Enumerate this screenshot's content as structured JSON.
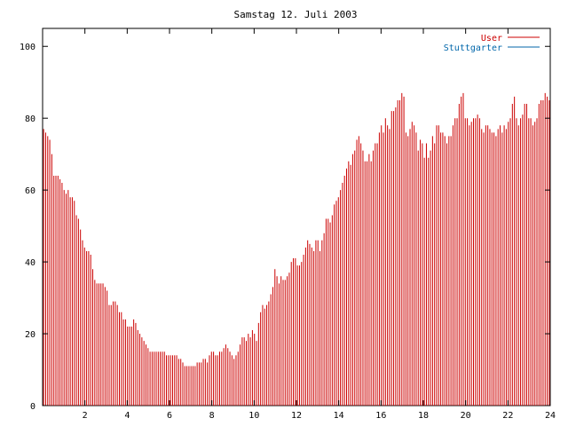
{
  "chart_data": {
    "type": "bar",
    "title": "Samstag 12. Juli 2003",
    "xlabel": "",
    "ylabel": "",
    "xlim": [
      0,
      24
    ],
    "ylim": [
      0,
      105
    ],
    "x_ticks": [
      2,
      4,
      6,
      8,
      10,
      12,
      14,
      16,
      18,
      20,
      22,
      24
    ],
    "y_ticks": [
      0,
      20,
      40,
      60,
      80,
      100
    ],
    "grid": false,
    "legend_position": "top-right",
    "series": [
      {
        "name": "User",
        "color": "#cc0000",
        "values": [
          77,
          76,
          75,
          74,
          70,
          64,
          64,
          64,
          63,
          62,
          60,
          59,
          60,
          58,
          58,
          57,
          53,
          52,
          49,
          46,
          44,
          43,
          43,
          42,
          38,
          35,
          34,
          34,
          34,
          34,
          33,
          32,
          28,
          28,
          29,
          29,
          28,
          26,
          26,
          24,
          24,
          22,
          22,
          22,
          24,
          23,
          21,
          20,
          19,
          18,
          17,
          16,
          15,
          15,
          15,
          15,
          15,
          15,
          15,
          15,
          14,
          14,
          14,
          14,
          14,
          14,
          13,
          13,
          12,
          11,
          11,
          11,
          11,
          11,
          11,
          12,
          12,
          12,
          13,
          13,
          12,
          14,
          15,
          15,
          14,
          14,
          15,
          15,
          16,
          17,
          16,
          15,
          14,
          13,
          14,
          15,
          17,
          19,
          19,
          18,
          20,
          19,
          21,
          20,
          18,
          23,
          26,
          28,
          27,
          28,
          29,
          31,
          33,
          38,
          36,
          34,
          36,
          35,
          35,
          36,
          37,
          40,
          41,
          41,
          39,
          39,
          40,
          42,
          44,
          46,
          45,
          44,
          43,
          46,
          46,
          43,
          46,
          48,
          52,
          52,
          51,
          53,
          56,
          57,
          58,
          60,
          62,
          64,
          66,
          68,
          67,
          70,
          71,
          74,
          75,
          73,
          71,
          68,
          68,
          70,
          68,
          71,
          73,
          73,
          76,
          78,
          76,
          80,
          78,
          77,
          82,
          82,
          83,
          85,
          85,
          87,
          86,
          76,
          75,
          77,
          79,
          78,
          76,
          71,
          74,
          73,
          69,
          73,
          69,
          71,
          75,
          73,
          78,
          78,
          76,
          76,
          75,
          73,
          75,
          75,
          78,
          80,
          80,
          84,
          86,
          87,
          80,
          80,
          78,
          79,
          80,
          80,
          81,
          80,
          77,
          76,
          78,
          78,
          77,
          76,
          76,
          75,
          77,
          78,
          76,
          78,
          77,
          79,
          80,
          84,
          86,
          80,
          78,
          80,
          81,
          84,
          84,
          80,
          80,
          78,
          79,
          80,
          84,
          85,
          85,
          87,
          86,
          85
        ]
      },
      {
        "name": "Stuttgarter",
        "color": "#0066aa",
        "values": []
      }
    ]
  }
}
